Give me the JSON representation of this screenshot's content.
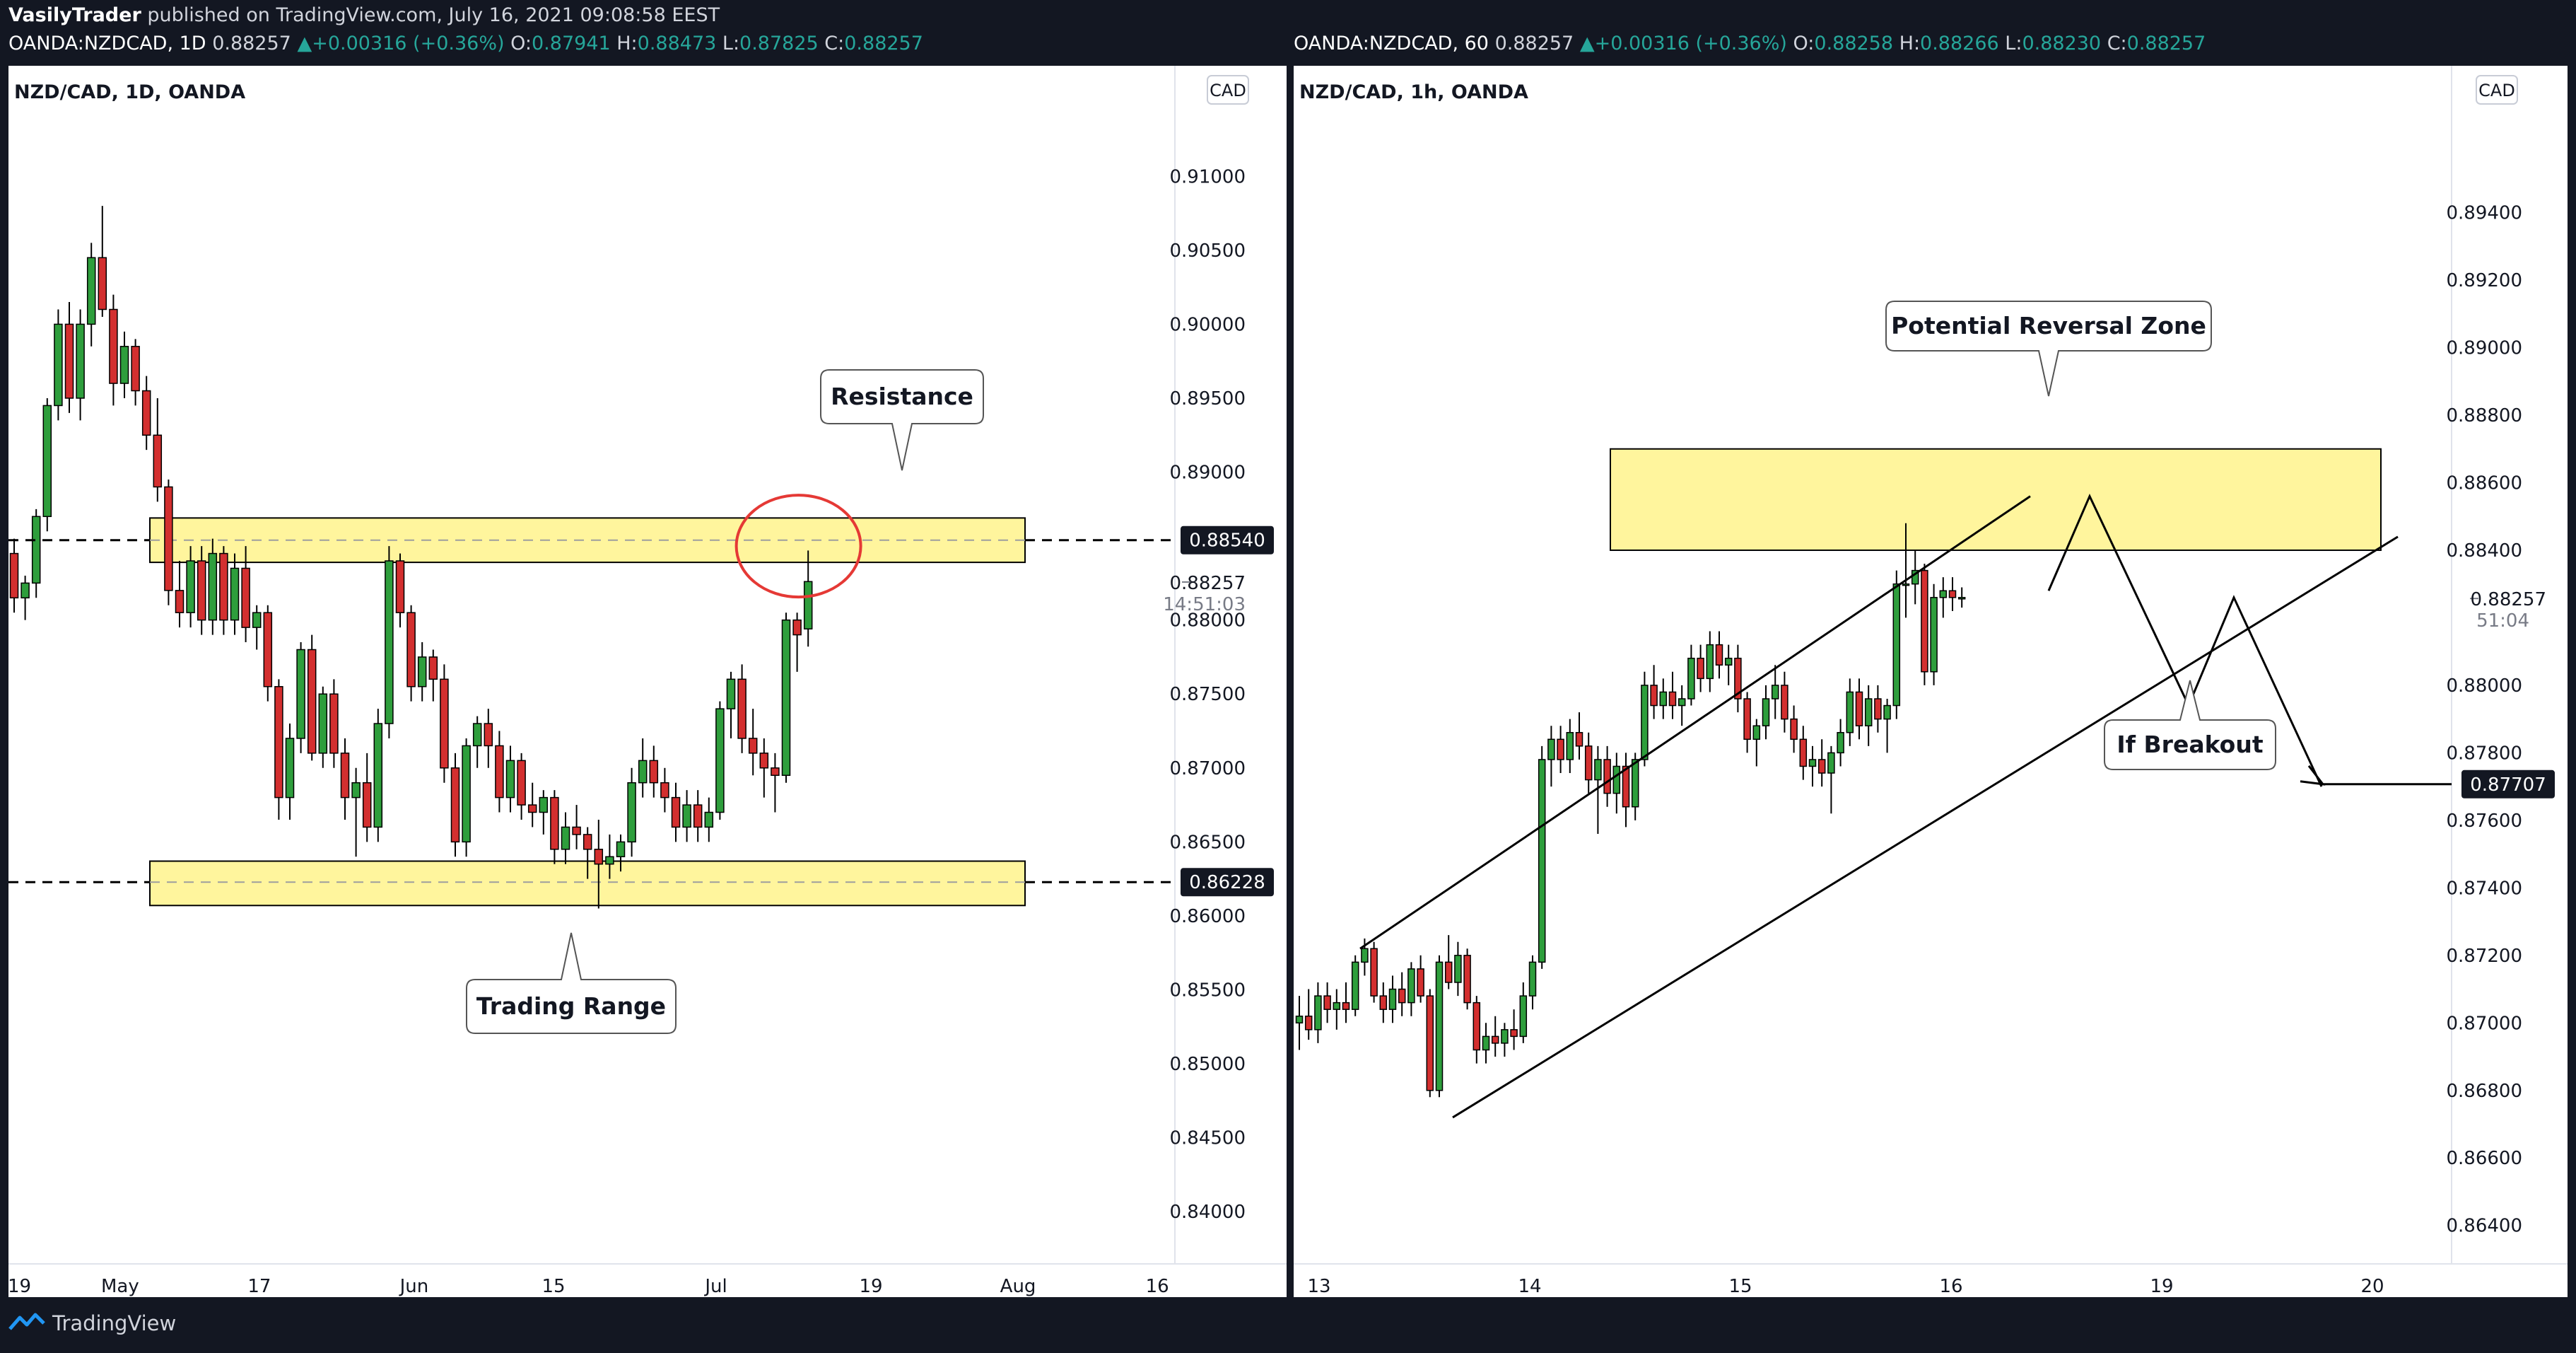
{
  "header": {
    "author": "VasilyTrader",
    "published_text": " published on TradingView.com, July 16, 2021 09:08:58 EEST"
  },
  "left_info": {
    "symbol": "OANDA:NZDCAD, 1D",
    "price": "0.88257",
    "change": "+0.00316 (+0.36%)",
    "o_label": "O:",
    "o": "0.87941",
    "h_label": "H:",
    "h": "0.88473",
    "l_label": "L:",
    "l": "0.87825",
    "c_label": "C:",
    "c": "0.88257"
  },
  "right_info": {
    "symbol": "OANDA:NZDCAD, 60",
    "price": "0.88257",
    "change": "+0.00316 (+0.36%)",
    "o_label": "O:",
    "o": "0.88258",
    "h_label": "H:",
    "h": "0.88266",
    "l_label": "L:",
    "l": "0.88230",
    "c_label": "C:",
    "c": "0.88257"
  },
  "footer": {
    "brand": "TradingView"
  },
  "chart_data": [
    {
      "type": "candlestick",
      "title": "NZD/CAD, 1D, OANDA",
      "currency": "CAD",
      "y_range": [
        0.838,
        0.9125
      ],
      "y_ticks": [
        "0.91000",
        "0.90500",
        "0.90000",
        "0.89500",
        "0.89000",
        "0.88000",
        "0.87500",
        "0.87000",
        "0.86500",
        "0.86000",
        "0.85500",
        "0.85000",
        "0.84500",
        "0.84000"
      ],
      "x_tick_labels": [
        "19",
        "May",
        "17",
        "Jun",
        "15",
        "Jul",
        "19",
        "Aug",
        "16"
      ],
      "x_tick_days": [
        -10,
        3,
        21,
        41,
        59,
        80,
        100,
        119,
        137
      ],
      "candles_ohlc": [
        [
          0.8845,
          0.8855,
          0.8805,
          0.8815
        ],
        [
          0.8815,
          0.883,
          0.88,
          0.8825
        ],
        [
          0.8825,
          0.8875,
          0.8815,
          0.887
        ],
        [
          0.887,
          0.895,
          0.886,
          0.8945
        ],
        [
          0.8945,
          0.901,
          0.8935,
          0.9
        ],
        [
          0.9,
          0.9015,
          0.894,
          0.895
        ],
        [
          0.895,
          0.901,
          0.8935,
          0.9
        ],
        [
          0.9,
          0.9055,
          0.8985,
          0.9045
        ],
        [
          0.9045,
          0.908,
          0.9005,
          0.901
        ],
        [
          0.901,
          0.902,
          0.8945,
          0.896
        ],
        [
          0.896,
          0.8995,
          0.895,
          0.8985
        ],
        [
          0.8985,
          0.899,
          0.8945,
          0.8955
        ],
        [
          0.8955,
          0.8965,
          0.8915,
          0.8925
        ],
        [
          0.8925,
          0.895,
          0.888,
          0.889
        ],
        [
          0.889,
          0.8895,
          0.881,
          0.882
        ],
        [
          0.882,
          0.884,
          0.8795,
          0.8805
        ],
        [
          0.8805,
          0.885,
          0.8795,
          0.884
        ],
        [
          0.884,
          0.885,
          0.879,
          0.88
        ],
        [
          0.88,
          0.8855,
          0.879,
          0.8845
        ],
        [
          0.8845,
          0.885,
          0.879,
          0.88
        ],
        [
          0.88,
          0.8845,
          0.879,
          0.8835
        ],
        [
          0.8835,
          0.885,
          0.8785,
          0.8795
        ],
        [
          0.8795,
          0.881,
          0.878,
          0.8805
        ],
        [
          0.8805,
          0.881,
          0.8745,
          0.8755
        ],
        [
          0.8755,
          0.876,
          0.8665,
          0.868
        ],
        [
          0.868,
          0.873,
          0.8665,
          0.872
        ],
        [
          0.872,
          0.8785,
          0.871,
          0.878
        ],
        [
          0.878,
          0.879,
          0.8705,
          0.871
        ],
        [
          0.871,
          0.8755,
          0.87,
          0.875
        ],
        [
          0.875,
          0.876,
          0.87,
          0.871
        ],
        [
          0.871,
          0.872,
          0.8665,
          0.868
        ],
        [
          0.868,
          0.87,
          0.864,
          0.869
        ],
        [
          0.869,
          0.871,
          0.865,
          0.866
        ],
        [
          0.866,
          0.874,
          0.865,
          0.873
        ],
        [
          0.873,
          0.885,
          0.872,
          0.884
        ],
        [
          0.884,
          0.8845,
          0.8795,
          0.8805
        ],
        [
          0.8805,
          0.881,
          0.8745,
          0.8755
        ],
        [
          0.8755,
          0.8785,
          0.8745,
          0.8775
        ],
        [
          0.8775,
          0.878,
          0.8745,
          0.876
        ],
        [
          0.876,
          0.877,
          0.869,
          0.87
        ],
        [
          0.87,
          0.871,
          0.864,
          0.865
        ],
        [
          0.865,
          0.872,
          0.864,
          0.8715
        ],
        [
          0.8715,
          0.8735,
          0.87,
          0.873
        ],
        [
          0.873,
          0.874,
          0.87,
          0.8715
        ],
        [
          0.8715,
          0.8725,
          0.867,
          0.868
        ],
        [
          0.868,
          0.8715,
          0.867,
          0.8705
        ],
        [
          0.8705,
          0.871,
          0.8665,
          0.8675
        ],
        [
          0.8675,
          0.869,
          0.866,
          0.867
        ],
        [
          0.867,
          0.8685,
          0.8655,
          0.868
        ],
        [
          0.868,
          0.8685,
          0.8635,
          0.8645
        ],
        [
          0.8645,
          0.867,
          0.8635,
          0.866
        ],
        [
          0.866,
          0.8675,
          0.8645,
          0.8655
        ],
        [
          0.8655,
          0.866,
          0.8625,
          0.8645
        ],
        [
          0.8645,
          0.8665,
          0.8605,
          0.8635
        ],
        [
          0.8635,
          0.8655,
          0.8625,
          0.864
        ],
        [
          0.864,
          0.8655,
          0.863,
          0.865
        ],
        [
          0.865,
          0.87,
          0.864,
          0.869
        ],
        [
          0.869,
          0.872,
          0.868,
          0.8705
        ],
        [
          0.8705,
          0.8715,
          0.868,
          0.869
        ],
        [
          0.869,
          0.87,
          0.867,
          0.868
        ],
        [
          0.868,
          0.869,
          0.865,
          0.866
        ],
        [
          0.866,
          0.8685,
          0.865,
          0.8675
        ],
        [
          0.8675,
          0.8685,
          0.865,
          0.866
        ],
        [
          0.866,
          0.868,
          0.865,
          0.867
        ],
        [
          0.867,
          0.8745,
          0.8665,
          0.874
        ],
        [
          0.874,
          0.8765,
          0.872,
          0.876
        ],
        [
          0.876,
          0.877,
          0.871,
          0.872
        ],
        [
          0.872,
          0.874,
          0.8695,
          0.871
        ],
        [
          0.871,
          0.872,
          0.868,
          0.87
        ],
        [
          0.87,
          0.871,
          0.867,
          0.8695
        ],
        [
          0.8695,
          0.8805,
          0.869,
          0.88
        ],
        [
          0.88,
          0.8805,
          0.8765,
          0.879
        ],
        [
          0.8794,
          0.8847,
          0.8782,
          0.8826
        ]
      ],
      "resistance_zone": [
        0.8839,
        0.8869
      ],
      "resistance_level": "0.88540",
      "support_zone": [
        0.8607,
        0.8637
      ],
      "support_level": "0.86228",
      "current_price": "0.88257",
      "countdown": "14:51:03",
      "annotations": [
        "Resistance",
        "Trading Range"
      ]
    },
    {
      "type": "candlestick",
      "title": "NZD/CAD, 1h, OANDA",
      "currency": "CAD",
      "y_range": [
        0.8628,
        0.8964
      ],
      "y_ticks": [
        "0.89400",
        "0.89200",
        "0.89000",
        "0.88800",
        "0.88600",
        "0.88400",
        "0.88000",
        "0.87800",
        "0.87600",
        "0.87400",
        "0.87200",
        "0.87000",
        "0.86800",
        "0.86600",
        "0.86400"
      ],
      "x_tick_labels": [
        "13",
        "14",
        "15",
        "16",
        "19",
        "20"
      ],
      "x_tick_days": [
        0,
        1,
        2,
        3,
        4,
        5
      ],
      "candles_ohlc": [
        [
          0.87,
          0.8708,
          0.8692,
          0.8702
        ],
        [
          0.8702,
          0.871,
          0.8695,
          0.8698
        ],
        [
          0.8698,
          0.8712,
          0.8694,
          0.8708
        ],
        [
          0.8708,
          0.8712,
          0.87,
          0.8704
        ],
        [
          0.8704,
          0.871,
          0.8698,
          0.8706
        ],
        [
          0.8706,
          0.8712,
          0.87,
          0.8704
        ],
        [
          0.8704,
          0.872,
          0.8702,
          0.8718
        ],
        [
          0.8718,
          0.8725,
          0.8714,
          0.8722
        ],
        [
          0.8722,
          0.8724,
          0.8706,
          0.8708
        ],
        [
          0.8708,
          0.8712,
          0.87,
          0.8704
        ],
        [
          0.8704,
          0.8714,
          0.87,
          0.871
        ],
        [
          0.871,
          0.8715,
          0.8702,
          0.8706
        ],
        [
          0.8706,
          0.8718,
          0.8702,
          0.8716
        ],
        [
          0.8716,
          0.872,
          0.8706,
          0.8708
        ],
        [
          0.8708,
          0.871,
          0.8678,
          0.868
        ],
        [
          0.868,
          0.872,
          0.8678,
          0.8718
        ],
        [
          0.8718,
          0.8726,
          0.871,
          0.8712
        ],
        [
          0.8712,
          0.8724,
          0.8708,
          0.872
        ],
        [
          0.872,
          0.8722,
          0.8704,
          0.8706
        ],
        [
          0.8706,
          0.8708,
          0.8688,
          0.8692
        ],
        [
          0.8692,
          0.87,
          0.8688,
          0.8696
        ],
        [
          0.8696,
          0.8702,
          0.869,
          0.8694
        ],
        [
          0.8694,
          0.87,
          0.869,
          0.8698
        ],
        [
          0.8698,
          0.8704,
          0.8692,
          0.8696
        ],
        [
          0.8696,
          0.8712,
          0.8694,
          0.8708
        ],
        [
          0.8708,
          0.872,
          0.8704,
          0.8718
        ],
        [
          0.8718,
          0.8782,
          0.8716,
          0.8778
        ],
        [
          0.8778,
          0.8788,
          0.877,
          0.8784
        ],
        [
          0.8784,
          0.8788,
          0.8774,
          0.8778
        ],
        [
          0.8778,
          0.879,
          0.8774,
          0.8786
        ],
        [
          0.8786,
          0.8792,
          0.8778,
          0.8782
        ],
        [
          0.8782,
          0.8786,
          0.8768,
          0.8772
        ],
        [
          0.8772,
          0.8782,
          0.8756,
          0.8778
        ],
        [
          0.8778,
          0.8782,
          0.8764,
          0.8768
        ],
        [
          0.8768,
          0.878,
          0.8762,
          0.8776
        ],
        [
          0.8776,
          0.878,
          0.8758,
          0.8764
        ],
        [
          0.8764,
          0.878,
          0.876,
          0.8778
        ],
        [
          0.8778,
          0.8804,
          0.8776,
          0.88
        ],
        [
          0.88,
          0.8806,
          0.879,
          0.8794
        ],
        [
          0.8794,
          0.8802,
          0.879,
          0.8798
        ],
        [
          0.8798,
          0.8804,
          0.879,
          0.8794
        ],
        [
          0.8794,
          0.88,
          0.8788,
          0.8796
        ],
        [
          0.8796,
          0.8812,
          0.8794,
          0.8808
        ],
        [
          0.8808,
          0.8812,
          0.8798,
          0.8802
        ],
        [
          0.8802,
          0.8816,
          0.8798,
          0.8812
        ],
        [
          0.8812,
          0.8816,
          0.8802,
          0.8806
        ],
        [
          0.8806,
          0.8812,
          0.88,
          0.8808
        ],
        [
          0.8808,
          0.8812,
          0.8792,
          0.8796
        ],
        [
          0.8796,
          0.8798,
          0.878,
          0.8784
        ],
        [
          0.8784,
          0.879,
          0.8776,
          0.8788
        ],
        [
          0.8788,
          0.88,
          0.8784,
          0.8796
        ],
        [
          0.8796,
          0.8806,
          0.879,
          0.88
        ],
        [
          0.88,
          0.8804,
          0.8786,
          0.879
        ],
        [
          0.879,
          0.8794,
          0.878,
          0.8784
        ],
        [
          0.8784,
          0.8788,
          0.8772,
          0.8776
        ],
        [
          0.8776,
          0.8782,
          0.877,
          0.8778
        ],
        [
          0.8778,
          0.8784,
          0.877,
          0.8774
        ],
        [
          0.8774,
          0.8782,
          0.8762,
          0.878
        ],
        [
          0.878,
          0.879,
          0.8776,
          0.8786
        ],
        [
          0.8786,
          0.8802,
          0.8782,
          0.8798
        ],
        [
          0.8798,
          0.8802,
          0.8784,
          0.8788
        ],
        [
          0.8788,
          0.88,
          0.8782,
          0.8796
        ],
        [
          0.8796,
          0.88,
          0.8786,
          0.879
        ],
        [
          0.879,
          0.8796,
          0.878,
          0.8794
        ],
        [
          0.8794,
          0.8834,
          0.879,
          0.883
        ],
        [
          0.883,
          0.8848,
          0.882,
          0.883
        ],
        [
          0.883,
          0.884,
          0.8824,
          0.8834
        ],
        [
          0.8834,
          0.8836,
          0.88,
          0.8804
        ],
        [
          0.8804,
          0.883,
          0.88,
          0.8826
        ],
        [
          0.8826,
          0.8832,
          0.882,
          0.8828
        ],
        [
          0.8828,
          0.8832,
          0.8822,
          0.8826
        ],
        [
          0.8826,
          0.8829,
          0.8823,
          0.8826
        ]
      ],
      "reversal_zone": [
        0.884,
        0.887
      ],
      "channel_upper": [
        [
          0.8722,
          0.8752
        ],
        [
          0.8856,
          0.8928
        ]
      ],
      "channel_lower": [
        [
          0.8672,
          0.868
        ],
        [
          0.8844,
          0.8972
        ]
      ],
      "projection_path": [
        [
          0.8828,
          0.8944
        ],
        [
          0.8856,
          0.9008
        ],
        [
          0.8794,
          0.9072
        ],
        [
          0.8826,
          0.9136
        ],
        [
          0.877,
          0.9192
        ]
      ],
      "projection_target": "0.87707",
      "current_price": "0.88257",
      "countdown": "51:04",
      "annotations": [
        "Potential Reversal Zone",
        "If Breakout"
      ]
    }
  ],
  "colors": {
    "up": "#26a69a",
    "down": "#ef5350",
    "candle_up_fill": "#2e9e3c",
    "candle_down_fill": "#d32f2f",
    "zone": "#fff59d",
    "zone_border": "#000000",
    "circle": "#e53935"
  }
}
